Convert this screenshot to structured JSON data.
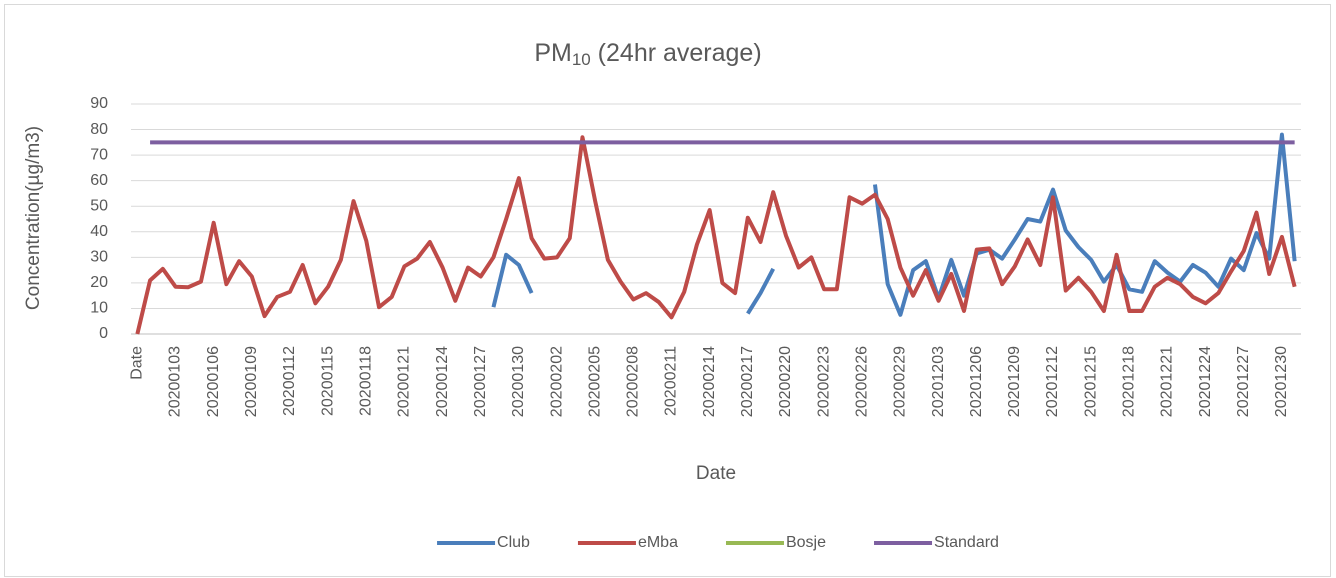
{
  "chart_data": {
    "type": "line",
    "title": {
      "main": "PM",
      "subscript": "10",
      "rest": " (24hr average)"
    },
    "x_label": "Date",
    "y_label": "Concentration(µg/m3)",
    "categories": [
      "Date",
      null,
      null,
      "20200103",
      null,
      null,
      "20200106",
      null,
      null,
      "20200109",
      null,
      null,
      "20200112",
      null,
      null,
      "20200115",
      null,
      null,
      "20200118",
      null,
      null,
      "20200121",
      null,
      null,
      "20200124",
      null,
      null,
      "20200127",
      null,
      null,
      "20200130",
      null,
      null,
      "20200202",
      null,
      null,
      "20200205",
      null,
      null,
      "20200208",
      null,
      null,
      "20200211",
      null,
      null,
      "20200214",
      null,
      null,
      "20200217",
      null,
      null,
      "20200220",
      null,
      null,
      "20200223",
      null,
      null,
      "20200226",
      null,
      null,
      "20200229",
      null,
      null,
      "20201203",
      null,
      null,
      "20201206",
      null,
      null,
      "20201209",
      null,
      null,
      "20201212",
      null,
      null,
      "20201215",
      null,
      null,
      "20201218",
      null,
      null,
      "20201221",
      null,
      null,
      "20201224",
      null,
      null,
      "20201227",
      null,
      null,
      "20201230",
      null
    ],
    "series": [
      {
        "name": "Club",
        "color": "#4a7ebb",
        "values": [
          null,
          null,
          null,
          null,
          null,
          null,
          null,
          null,
          null,
          null,
          null,
          null,
          null,
          null,
          null,
          null,
          null,
          null,
          null,
          null,
          null,
          null,
          null,
          null,
          null,
          null,
          null,
          null,
          10.5,
          31,
          27,
          16,
          null,
          null,
          null,
          null,
          null,
          null,
          null,
          null,
          null,
          null,
          null,
          null,
          null,
          null,
          null,
          null,
          8,
          16,
          25.5,
          null,
          null,
          null,
          null,
          null,
          null,
          null,
          58.5,
          19.5,
          7.5,
          25,
          28.5,
          14,
          29,
          15,
          31.5,
          33,
          29.5,
          37,
          45,
          44,
          56.5,
          40.5,
          34,
          29,
          20.5,
          27,
          17.5,
          16.5,
          28.5,
          24,
          20.5,
          27,
          24,
          18.5,
          29.5,
          25,
          39.5,
          29.5,
          78,
          28.5
        ]
      },
      {
        "name": "eMba",
        "color": "#be4b48",
        "values": [
          0,
          21,
          25.5,
          18.5,
          18.3,
          20.5,
          43.5,
          19.5,
          28.5,
          22.5,
          7,
          14.5,
          16.5,
          27,
          12,
          18.5,
          29,
          52,
          36.5,
          10.5,
          14.5,
          26.5,
          29.5,
          36,
          26,
          13,
          26,
          22.5,
          30,
          45,
          61,
          37.5,
          29.5,
          30,
          37.5,
          77,
          52,
          29,
          20.5,
          13.5,
          16,
          12.5,
          6.5,
          16.5,
          35,
          48.5,
          20,
          16,
          45.5,
          36,
          55.5,
          38.5,
          26,
          30,
          17.5,
          17.5,
          53.5,
          51,
          54.5,
          45,
          26,
          15,
          25,
          13,
          23.5,
          9,
          33,
          33.5,
          19.5,
          26.5,
          37,
          27,
          53.5,
          17,
          22,
          16.5,
          9,
          31,
          9,
          9,
          18.5,
          22,
          19.5,
          14.5,
          12,
          16,
          24.5,
          32.5,
          47.5,
          23.5,
          38,
          18.5
        ]
      },
      {
        "name": "Bosje",
        "color": "#98b954",
        "values": [
          null,
          null,
          null,
          null,
          null,
          null,
          null,
          null,
          null,
          null,
          null,
          null,
          null,
          null,
          null,
          null,
          null,
          null,
          null,
          null,
          null,
          null,
          null,
          null,
          null,
          null,
          null,
          null,
          null,
          null,
          null,
          null,
          null,
          null,
          null,
          null,
          null,
          null,
          null,
          null,
          null,
          null,
          null,
          null,
          null,
          null,
          null,
          null,
          null,
          null,
          null,
          null,
          null,
          null,
          null,
          null,
          null,
          null,
          null,
          null,
          null,
          null,
          null,
          null,
          null,
          null,
          null,
          null,
          null,
          null,
          null,
          null,
          null,
          null,
          null,
          null,
          null,
          null,
          null,
          null,
          null,
          null,
          null,
          null,
          null,
          null,
          null,
          null,
          null,
          null,
          null,
          null
        ]
      },
      {
        "name": "Standard",
        "color": "#7d5fa0",
        "values": [
          null,
          75,
          75,
          75,
          75,
          75,
          75,
          75,
          75,
          75,
          75,
          75,
          75,
          75,
          75,
          75,
          75,
          75,
          75,
          75,
          75,
          75,
          75,
          75,
          75,
          75,
          75,
          75,
          75,
          75,
          75,
          75,
          75,
          75,
          75,
          75,
          75,
          75,
          75,
          75,
          75,
          75,
          75,
          75,
          75,
          75,
          75,
          75,
          75,
          75,
          75,
          75,
          75,
          75,
          75,
          75,
          75,
          75,
          75,
          75,
          75,
          75,
          75,
          75,
          75,
          75,
          75,
          75,
          75,
          75,
          75,
          75,
          75,
          75,
          75,
          75,
          75,
          75,
          75,
          75,
          75,
          75,
          75,
          75,
          75,
          75,
          75,
          75,
          75,
          75,
          75,
          75
        ]
      }
    ],
    "ylim": [
      0,
      90
    ],
    "yticks": [
      0,
      10,
      20,
      30,
      40,
      50,
      60,
      70,
      80,
      90
    ],
    "grid": true,
    "legend": "bottom"
  }
}
